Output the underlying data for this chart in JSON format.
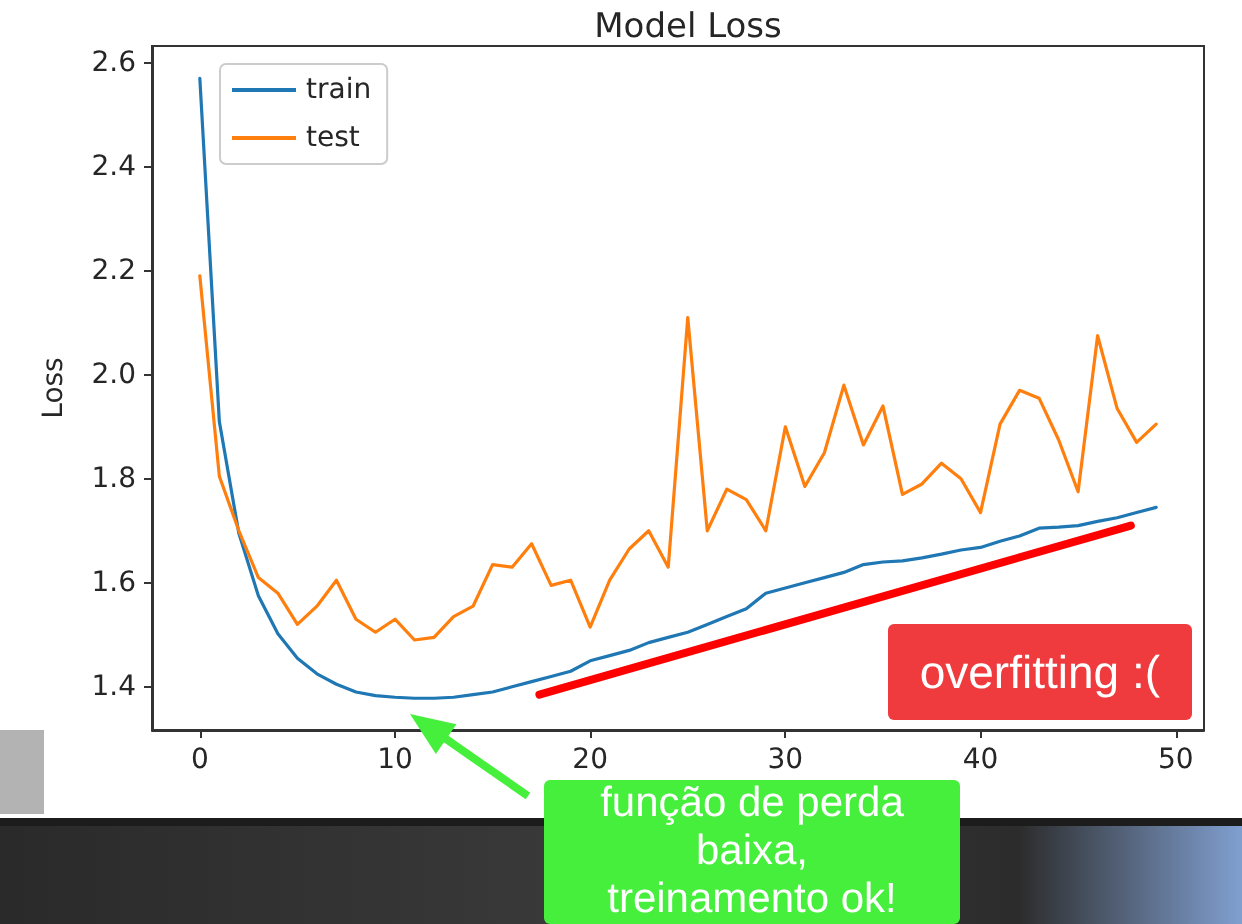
{
  "chart_data": {
    "type": "line",
    "title": "Model Loss",
    "ylabel": "Loss",
    "x": [
      0,
      1,
      2,
      3,
      4,
      5,
      6,
      7,
      8,
      9,
      10,
      11,
      12,
      13,
      14,
      15,
      16,
      17,
      18,
      19,
      20,
      21,
      22,
      23,
      24,
      25,
      26,
      27,
      28,
      29,
      30,
      31,
      32,
      33,
      34,
      35,
      36,
      37,
      38,
      39,
      40,
      41,
      42,
      43,
      44,
      45,
      46,
      47,
      48,
      49
    ],
    "series": [
      {
        "name": "train",
        "color": "#1f77b4",
        "values": [
          2.57,
          1.91,
          1.695,
          1.575,
          1.502,
          1.455,
          1.425,
          1.405,
          1.39,
          1.383,
          1.38,
          1.378,
          1.378,
          1.38,
          1.385,
          1.39,
          1.4,
          1.41,
          1.42,
          1.43,
          1.45,
          1.46,
          1.47,
          1.485,
          1.495,
          1.505,
          1.52,
          1.535,
          1.55,
          1.58,
          1.59,
          1.6,
          1.61,
          1.62,
          1.635,
          1.64,
          1.642,
          1.648,
          1.655,
          1.663,
          1.668,
          1.68,
          1.69,
          1.705,
          1.707,
          1.71,
          1.718,
          1.725,
          1.735,
          1.745
        ]
      },
      {
        "name": "test",
        "color": "#ff7f0e",
        "values": [
          2.19,
          1.805,
          1.7,
          1.61,
          1.58,
          1.52,
          1.555,
          1.605,
          1.53,
          1.505,
          1.53,
          1.49,
          1.495,
          1.535,
          1.555,
          1.635,
          1.63,
          1.675,
          1.595,
          1.605,
          1.515,
          1.605,
          1.665,
          1.7,
          1.63,
          2.11,
          1.7,
          1.78,
          1.76,
          1.7,
          1.9,
          1.785,
          1.85,
          1.98,
          1.865,
          1.94,
          1.77,
          1.79,
          1.83,
          1.8,
          1.735,
          1.905,
          1.97,
          1.955,
          1.875,
          1.775,
          2.075,
          1.935,
          1.87,
          1.905
        ]
      },
      {
        "type": "line",
        "color": "#ff0000",
        "x": [
          17.4,
          47.7
        ],
        "values": [
          1.385,
          1.71
        ]
      }
    ],
    "xlim": [
      -2.45,
      51.45
    ],
    "xticks": [
      0,
      10,
      20,
      30,
      40,
      50
    ],
    "ylim": [
      1.317,
      2.632
    ],
    "yticks": [
      1.4,
      1.6,
      1.8,
      {
        "value": 2,
        "label": "2.0"
      },
      2.2,
      2.4,
      2.6
    ],
    "legend": "top left",
    "marker": "none",
    "annotations": [
      "função de perda baixa, treinamento ok!",
      "overfitting :("
    ]
  }
}
